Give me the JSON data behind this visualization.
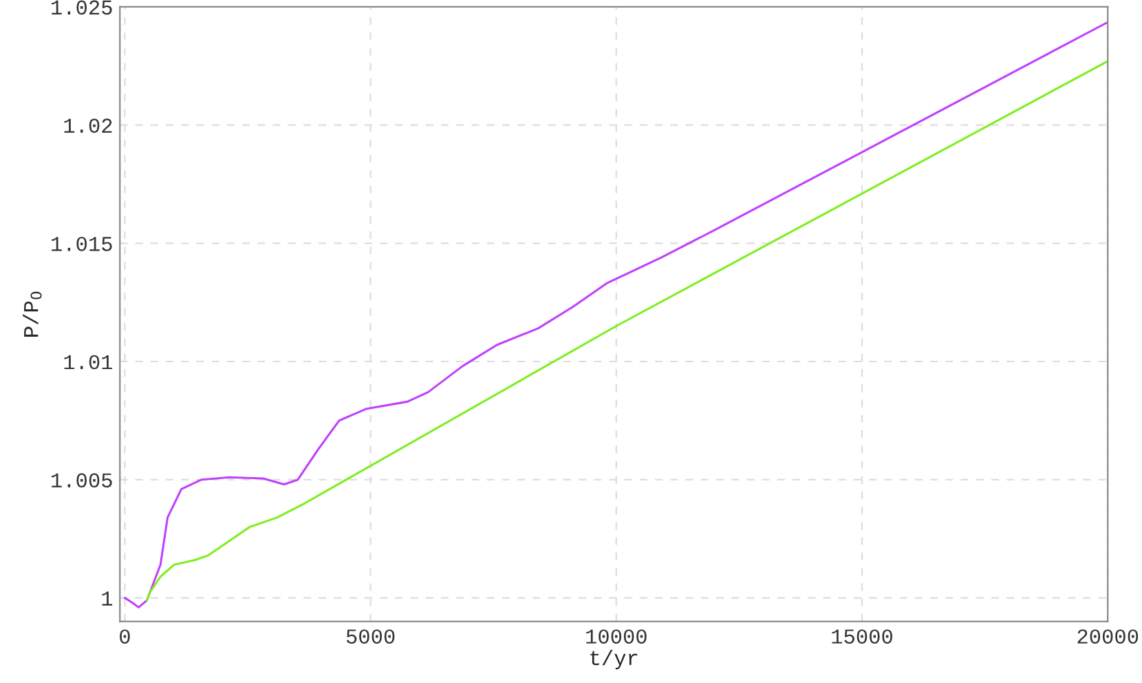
{
  "chart_data": {
    "type": "line",
    "xlabel": "t/yr",
    "ylabel": "P/P$_{0}$",
    "xlim": [
      -100,
      20000
    ],
    "ylim": [
      0.999,
      1.025
    ],
    "xticks": [
      0,
      5000,
      10000,
      15000,
      20000
    ],
    "yticks": [
      1,
      1.005,
      1.01,
      1.015,
      1.02,
      1.025
    ],
    "grid": true,
    "line_style": "solid",
    "marker": "none",
    "series": [
      {
        "color": "#c040ff",
        "x": [
          0,
          150,
          280,
          450,
          725,
          870,
          1150,
          1560,
          2120,
          2820,
          3240,
          3520,
          3940,
          4360,
          4920,
          5750,
          6170,
          6870,
          7570,
          8410,
          9110,
          9800,
          10920,
          12040,
          20000
        ],
        "values": [
          1.0,
          0.9998,
          0.9996,
          0.9999,
          1.0014,
          1.0034,
          1.0046,
          1.005,
          1.0051,
          1.00505,
          1.0048,
          1.005,
          1.0063,
          1.0075,
          1.008,
          1.0083,
          1.0087,
          1.0098,
          1.0107,
          1.0114,
          1.0123,
          1.0133,
          1.0144,
          1.0156,
          1.02435
        ]
      },
      {
        "color": "#80ee20",
        "x": [
          450,
          500,
          725,
          1000,
          1420,
          1700,
          2120,
          2540,
          3100,
          3660,
          10000,
          20000
        ],
        "values": [
          0.9999,
          1.0002,
          1.0009,
          1.0014,
          1.0016,
          1.0018,
          1.0024,
          1.003,
          1.0034,
          1.004,
          1.0115,
          1.0227
        ]
      }
    ]
  }
}
